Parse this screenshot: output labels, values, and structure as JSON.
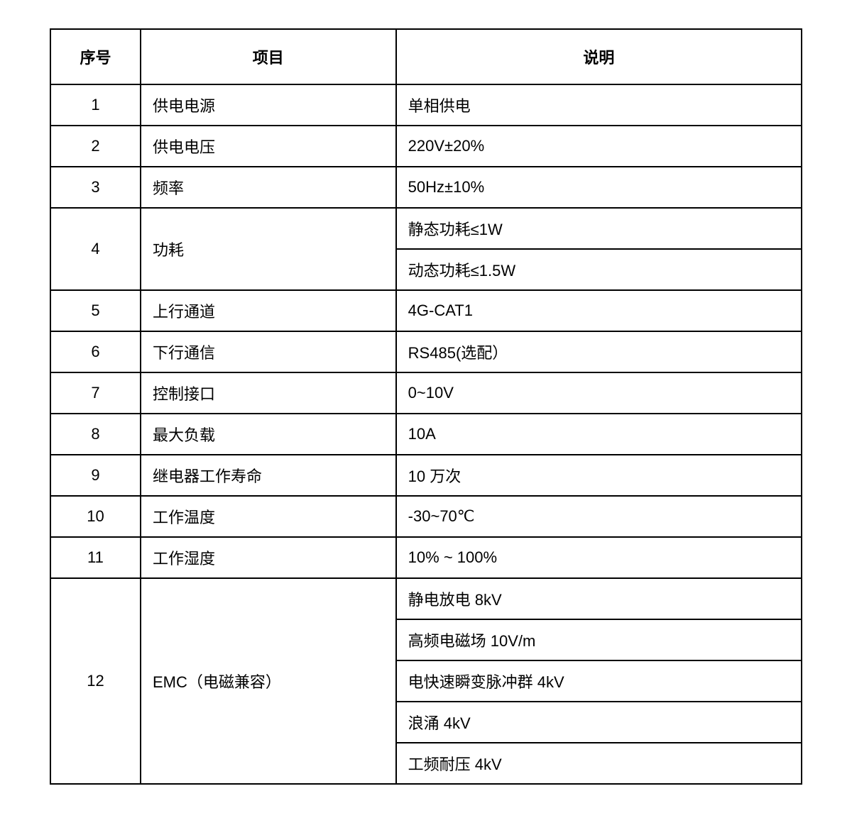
{
  "table": {
    "columns": [
      "序号",
      "项目",
      "说明"
    ],
    "column_widths": [
      "12%",
      "34%",
      "54%"
    ],
    "border_color": "#000000",
    "background_color": "#ffffff",
    "text_color": "#000000",
    "header_fontsize": 22,
    "body_fontsize": 22,
    "rows": [
      {
        "num": "1",
        "item": "供电电源",
        "desc": [
          "单相供电"
        ]
      },
      {
        "num": "2",
        "item": "供电电压",
        "desc": [
          "220V±20%"
        ]
      },
      {
        "num": "3",
        "item": "频率",
        "desc": [
          "50Hz±10%"
        ]
      },
      {
        "num": "4",
        "item": "功耗",
        "desc": [
          "静态功耗≤1W",
          "动态功耗≤1.5W"
        ]
      },
      {
        "num": "5",
        "item": "上行通道",
        "desc": [
          "4G-CAT1"
        ]
      },
      {
        "num": "6",
        "item": "下行通信",
        "desc": [
          "RS485(选配）"
        ]
      },
      {
        "num": "7",
        "item": "控制接口",
        "desc": [
          "0~10V"
        ]
      },
      {
        "num": "8",
        "item": "最大负载",
        "desc": [
          "10A"
        ]
      },
      {
        "num": "9",
        "item": "继电器工作寿命",
        "desc": [
          "10 万次"
        ]
      },
      {
        "num": "10",
        "item": "工作温度",
        "desc": [
          "-30~70℃"
        ]
      },
      {
        "num": "11",
        "item": "工作湿度",
        "desc": [
          "10% ~ 100%"
        ]
      },
      {
        "num": "12",
        "item": "EMC（电磁兼容）",
        "desc": [
          "静电放电 8kV",
          "高频电磁场 10V/m",
          "电快速瞬变脉冲群 4kV",
          "浪涌 4kV",
          "工频耐压 4kV"
        ]
      }
    ]
  }
}
